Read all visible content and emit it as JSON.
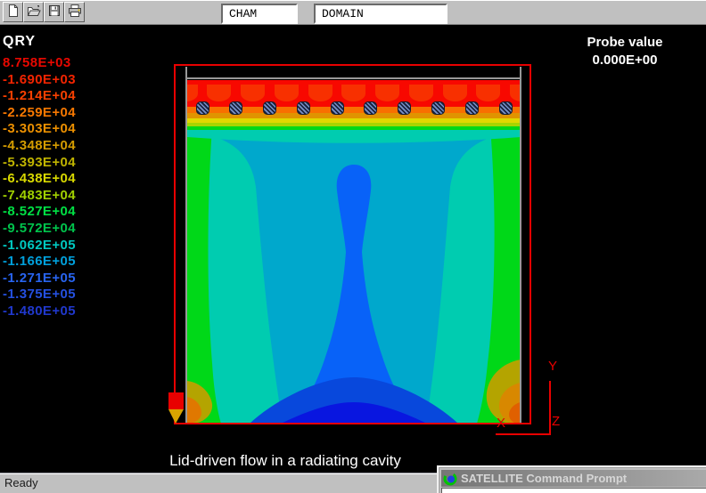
{
  "toolbar": {
    "buttons": [
      {
        "name": "new-file-button",
        "icon": "new-document-icon"
      },
      {
        "name": "open-file-button",
        "icon": "open-folder-icon"
      },
      {
        "name": "save-file-button",
        "icon": "floppy-disk-icon"
      },
      {
        "name": "print-button",
        "icon": "printer-icon"
      }
    ],
    "fields": {
      "cham": "CHAM",
      "domain": "DOMAIN"
    }
  },
  "legend": {
    "title": "QRY",
    "entries": [
      {
        "value": "8.758E+03",
        "color": "#e80800"
      },
      {
        "value": "-1.690E+03",
        "color": "#f42400"
      },
      {
        "value": "-1.214E+04",
        "color": "#f84000"
      },
      {
        "value": "-2.259E+04",
        "color": "#f87800"
      },
      {
        "value": "-3.303E+04",
        "color": "#ec9000"
      },
      {
        "value": "-4.348E+04",
        "color": "#d49c00"
      },
      {
        "value": "-5.393E+04",
        "color": "#c0b400"
      },
      {
        "value": "-6.438E+04",
        "color": "#d8d800"
      },
      {
        "value": "-7.483E+04",
        "color": "#a0d000"
      },
      {
        "value": "-8.527E+04",
        "color": "#00e044"
      },
      {
        "value": "-9.572E+04",
        "color": "#00c44c"
      },
      {
        "value": "-1.062E+05",
        "color": "#00c8c0"
      },
      {
        "value": "-1.166E+05",
        "color": "#00a0dc"
      },
      {
        "value": "-1.271E+05",
        "color": "#2864f0"
      },
      {
        "value": "-1.375E+05",
        "color": "#2450e0"
      },
      {
        "value": "-1.480E+05",
        "color": "#2038cc"
      }
    ]
  },
  "probe": {
    "label": "Probe value",
    "value": "0.000E+00"
  },
  "plot": {
    "caption": "Lid-driven flow in a radiating cavity",
    "heater_blocks": 10,
    "axis_labels": {
      "x": "X",
      "y": "Y",
      "z": "Z"
    },
    "colors": {
      "domain_outline": "#e80000",
      "grid": "#989898",
      "field_bands_top_to_bottom": [
        "#f80800",
        "#f83000",
        "#f87000",
        "#e09400",
        "#e0d800",
        "#a8d400",
        "#00d818",
        "#00ccb0",
        "#00a8cc",
        "#0862f8",
        "#0848dc",
        "#0916e0"
      ]
    }
  },
  "statusbar": {
    "text": "Ready"
  },
  "command_prompt": {
    "title": "SATELLITE Command Prompt"
  }
}
